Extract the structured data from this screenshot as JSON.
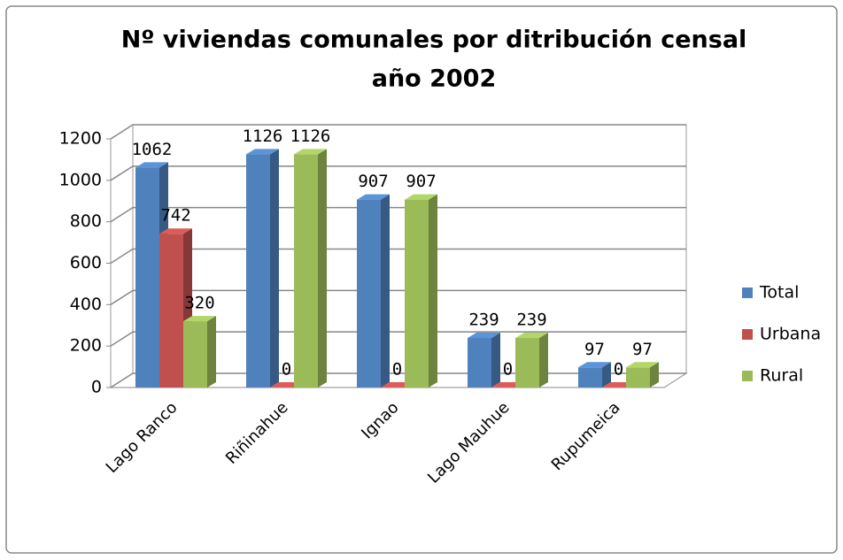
{
  "chart_data": {
    "type": "bar3d",
    "title": [
      "Nº viviendas comunales  por ditribución censal",
      "año 2002"
    ],
    "categories": [
      "Lago Ranco",
      "Riñinahue",
      "Ignao",
      "Lago Mauhue",
      "Rupumeica"
    ],
    "series": [
      {
        "name": "Total",
        "color": "#4f81bd",
        "values": [
          1062,
          1126,
          907,
          239,
          97
        ]
      },
      {
        "name": "Urbana",
        "color": "#c0504d",
        "values": [
          742,
          0,
          0,
          0,
          0
        ]
      },
      {
        "name": "Rural",
        "color": "#9bbb59",
        "values": [
          320,
          1126,
          907,
          239,
          97
        ]
      }
    ],
    "ylim": [
      0,
      1200
    ],
    "yticks": [
      0,
      200,
      400,
      600,
      800,
      1000,
      1200
    ],
    "grid": true,
    "legend": "right"
  }
}
